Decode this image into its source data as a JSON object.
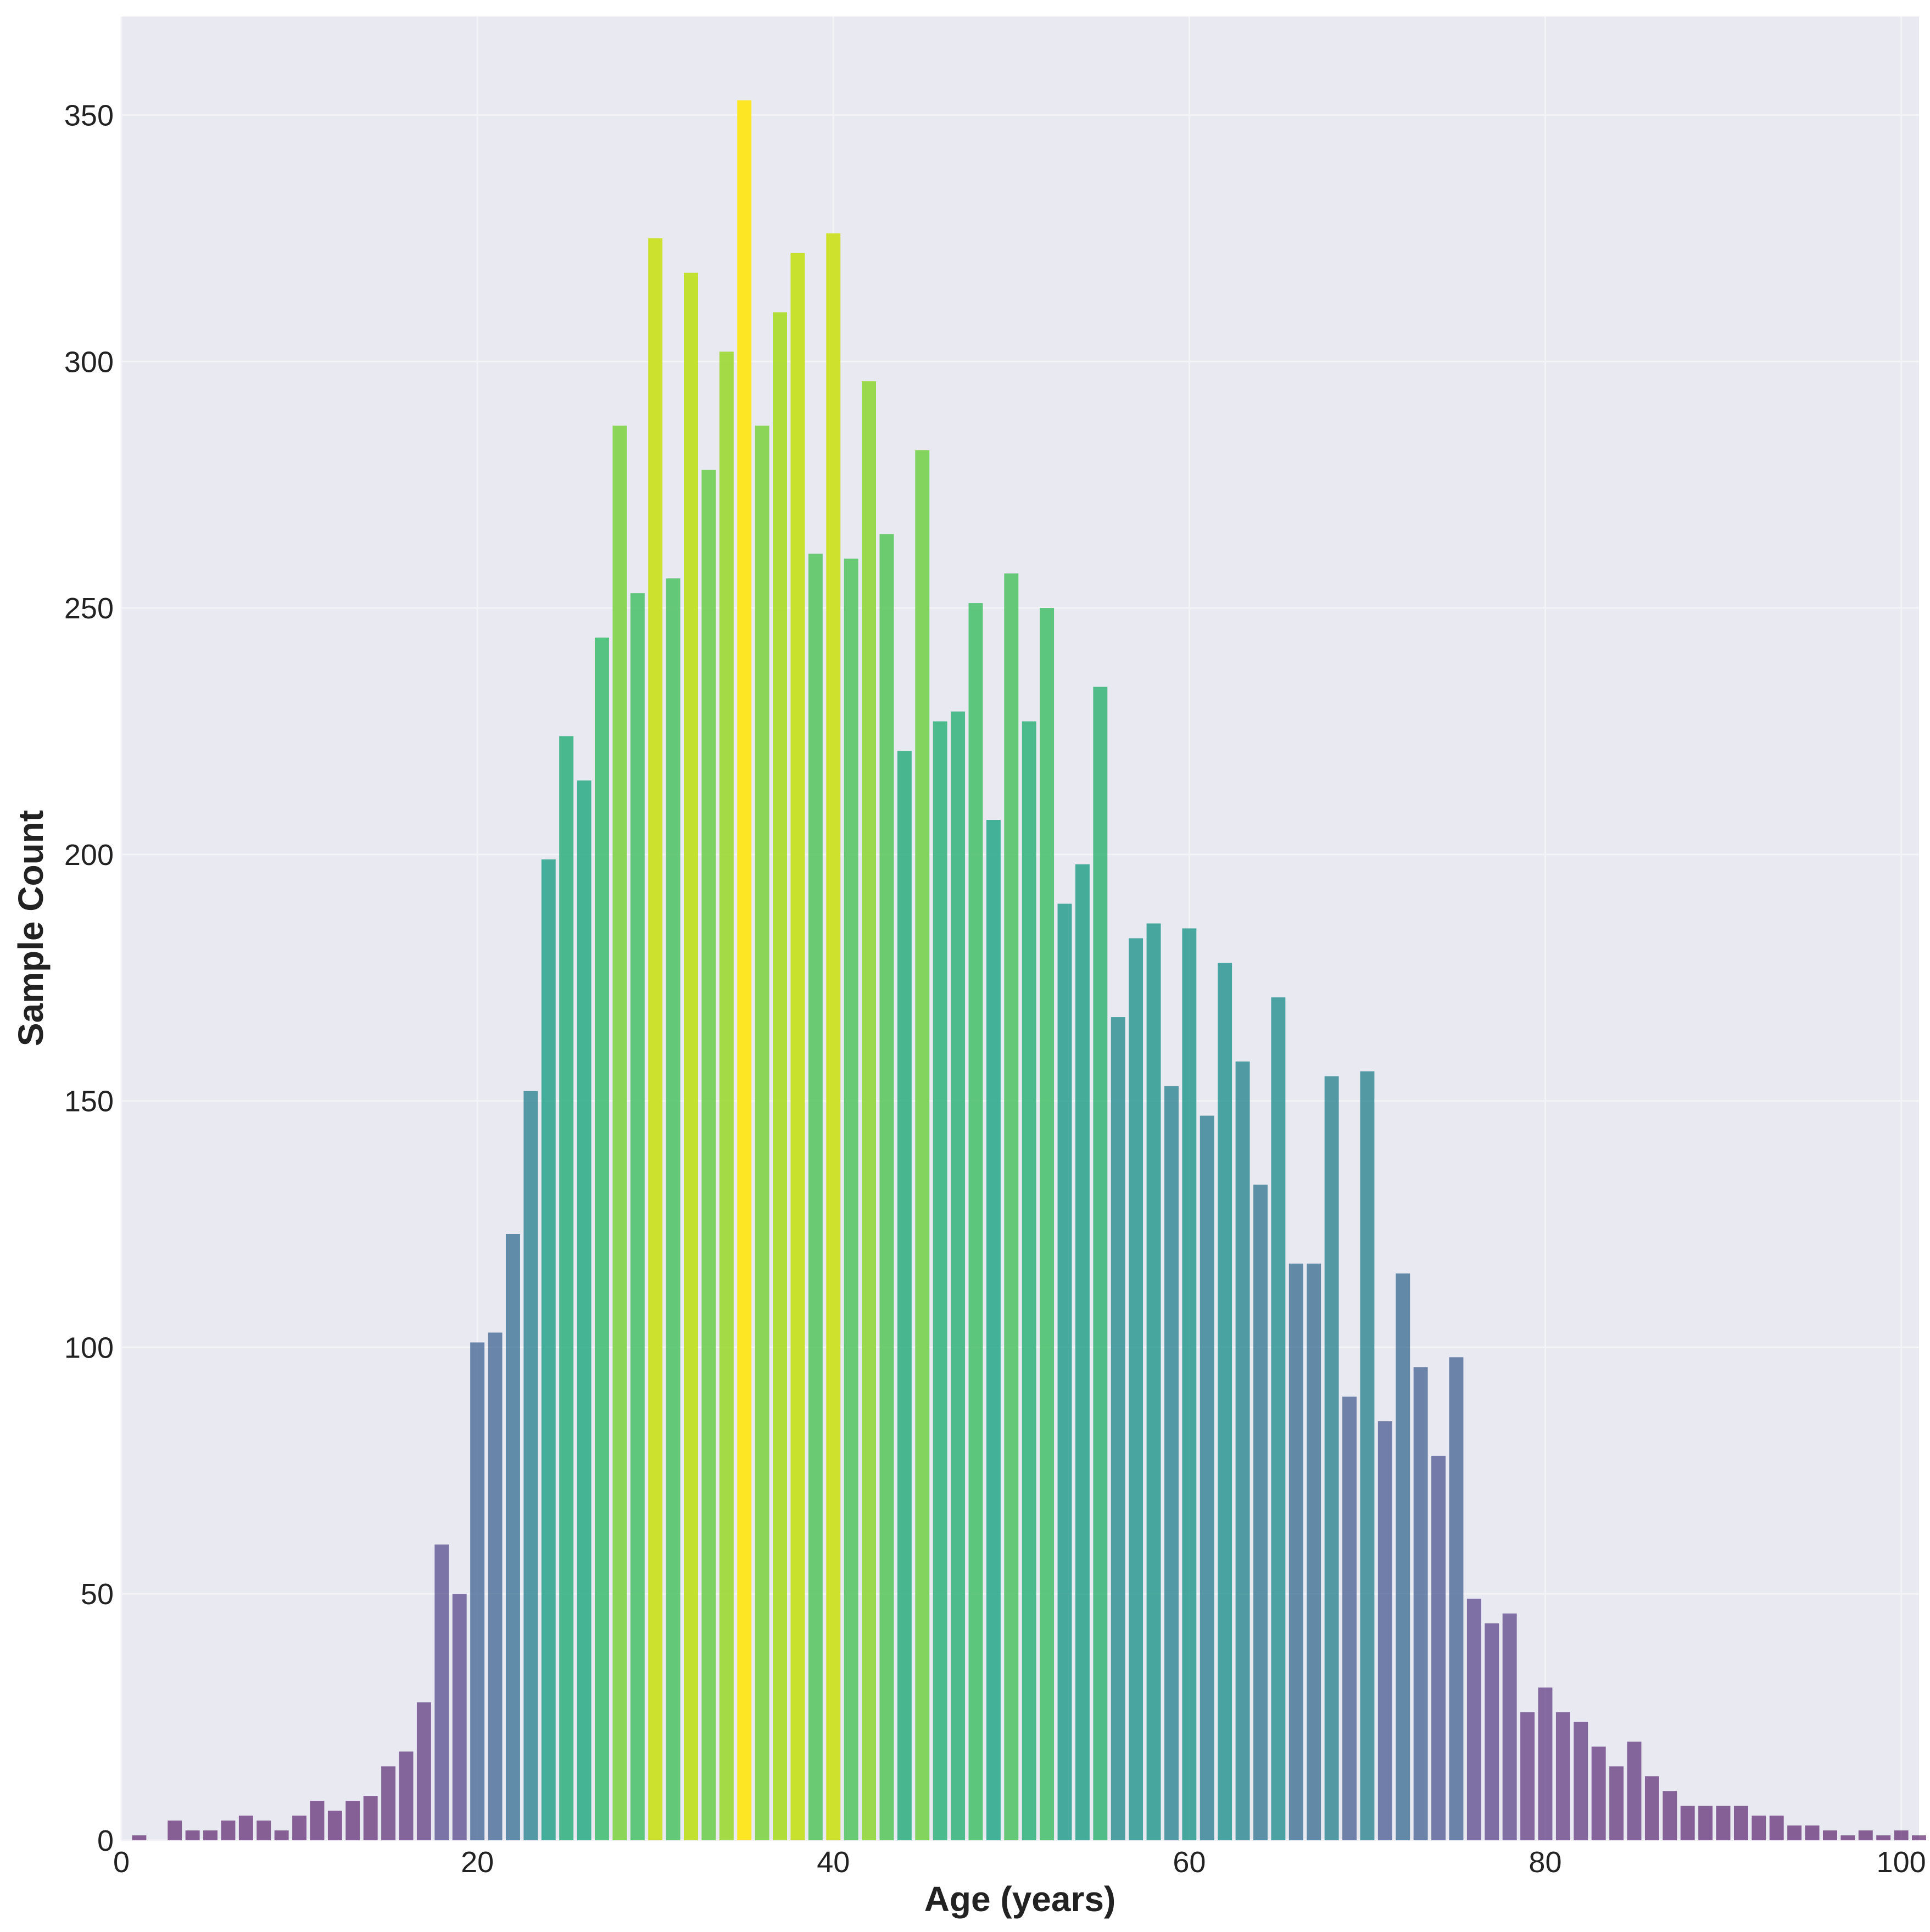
{
  "chart_data": {
    "type": "bar",
    "title": "",
    "xlabel": "Age (years)",
    "ylabel": "Sample Count",
    "xlim": [
      0,
      101
    ],
    "ylim": [
      0,
      370
    ],
    "xticks": [
      0,
      20,
      40,
      60,
      80,
      100
    ],
    "yticks": [
      0,
      50,
      100,
      150,
      200,
      250,
      300,
      350
    ],
    "grid": true,
    "colormap": "viridis",
    "plot_background": "#e9e9f1",
    "x": [
      1,
      2,
      3,
      4,
      5,
      6,
      7,
      8,
      9,
      10,
      11,
      12,
      13,
      14,
      15,
      16,
      17,
      18,
      19,
      20,
      21,
      22,
      23,
      24,
      25,
      26,
      27,
      28,
      29,
      30,
      31,
      32,
      33,
      34,
      35,
      36,
      37,
      38,
      39,
      40,
      41,
      42,
      43,
      44,
      45,
      46,
      47,
      48,
      49,
      50,
      51,
      52,
      53,
      54,
      55,
      56,
      57,
      58,
      59,
      60,
      61,
      62,
      63,
      64,
      65,
      66,
      67,
      68,
      69,
      70,
      71,
      72,
      73,
      74,
      75,
      76,
      77,
      78,
      79,
      80,
      81,
      82,
      83,
      84,
      85,
      86,
      87,
      88,
      89,
      90,
      91,
      92,
      93,
      94,
      95,
      96,
      97,
      98,
      99,
      100,
      101
    ],
    "values": [
      1,
      0,
      4,
      2,
      2,
      4,
      5,
      4,
      2,
      5,
      8,
      6,
      8,
      9,
      15,
      18,
      28,
      60,
      50,
      101,
      103,
      123,
      152,
      199,
      224,
      215,
      244,
      287,
      253,
      325,
      256,
      318,
      278,
      302,
      353,
      287,
      310,
      322,
      261,
      326,
      260,
      296,
      265,
      221,
      282,
      227,
      229,
      251,
      207,
      257,
      227,
      250,
      190,
      198,
      234,
      167,
      183,
      186,
      153,
      185,
      147,
      178,
      158,
      133,
      171,
      117,
      117,
      155,
      90,
      156,
      85,
      115,
      96,
      78,
      98,
      49,
      44,
      46,
      26,
      31,
      26,
      24,
      19,
      15,
      20,
      13,
      10,
      7,
      7,
      7,
      7,
      5,
      5,
      3,
      3,
      2,
      1,
      2,
      1,
      2,
      1
    ]
  }
}
